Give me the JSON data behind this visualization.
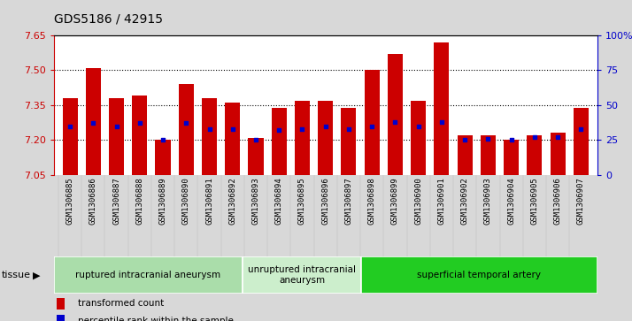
{
  "title": "GDS5186 / 42915",
  "samples": [
    "GSM1306885",
    "GSM1306886",
    "GSM1306887",
    "GSM1306888",
    "GSM1306889",
    "GSM1306890",
    "GSM1306891",
    "GSM1306892",
    "GSM1306893",
    "GSM1306894",
    "GSM1306895",
    "GSM1306896",
    "GSM1306897",
    "GSM1306898",
    "GSM1306899",
    "GSM1306900",
    "GSM1306901",
    "GSM1306902",
    "GSM1306903",
    "GSM1306904",
    "GSM1306905",
    "GSM1306906",
    "GSM1306907"
  ],
  "bar_tops": [
    7.38,
    7.51,
    7.38,
    7.39,
    7.2,
    7.44,
    7.38,
    7.36,
    7.21,
    7.34,
    7.37,
    7.37,
    7.34,
    7.5,
    7.57,
    7.37,
    7.62,
    7.22,
    7.22,
    7.2,
    7.22,
    7.23,
    7.34
  ],
  "percentile_ranks": [
    35,
    37,
    35,
    37,
    25,
    37,
    33,
    33,
    25,
    32,
    33,
    35,
    33,
    35,
    38,
    35,
    38,
    25,
    26,
    25,
    27,
    27,
    33
  ],
  "y_min": 7.05,
  "y_max": 7.65,
  "y_ticks": [
    7.05,
    7.2,
    7.35,
    7.5,
    7.65
  ],
  "right_y_ticks": [
    0,
    25,
    50,
    75,
    100
  ],
  "right_y_labels": [
    "0",
    "25",
    "50",
    "75",
    "100%"
  ],
  "bar_color": "#CC0000",
  "marker_color": "#0000CC",
  "bg_color": "#D8D8D8",
  "plot_bg_color": "#FFFFFF",
  "groups": [
    {
      "label": "ruptured intracranial aneurysm",
      "start": 0,
      "end": 8,
      "color": "#AADDAA"
    },
    {
      "label": "unruptured intracranial\naneurysm",
      "start": 8,
      "end": 13,
      "color": "#CCEECC"
    },
    {
      "label": "superficial temporal artery",
      "start": 13,
      "end": 23,
      "color": "#22CC22"
    }
  ],
  "legend_items": [
    {
      "label": "transformed count",
      "color": "#CC0000"
    },
    {
      "label": "percentile rank within the sample",
      "color": "#0000CC"
    }
  ],
  "tissue_label": "tissue",
  "grid_color": "#000000",
  "title_color": "#000000",
  "left_axis_color": "#CC0000",
  "right_axis_color": "#0000CC"
}
